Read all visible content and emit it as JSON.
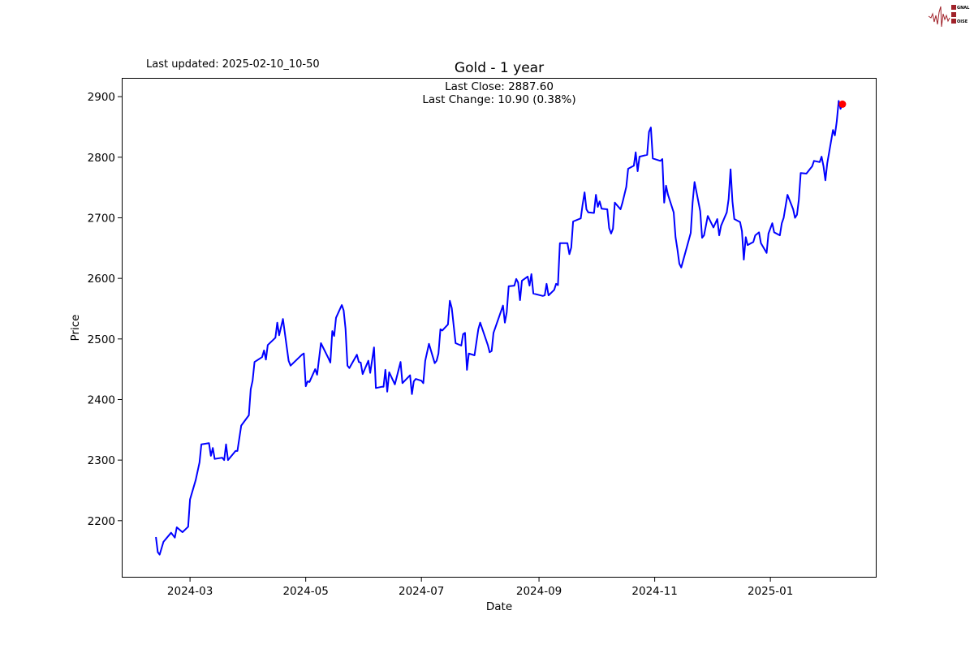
{
  "logo": {
    "text": "SIGNAL 2 NOISE"
  },
  "last_updated": "Last updated: 2025-02-10_10-50",
  "chart_data": {
    "type": "line",
    "title": "Gold - 1 year",
    "xlabel": "Date",
    "ylabel": "Price",
    "annotation": {
      "last_close": "Last Close: 2887.60",
      "last_change": "Last Change: 10.90 (0.38%)"
    },
    "xlim": [
      "2024-01-25",
      "2025-02-26"
    ],
    "ylim": [
      2106,
      2931
    ],
    "x_ticks": [
      "2024-03",
      "2024-05",
      "2024-07",
      "2024-09",
      "2024-11",
      "2025-01"
    ],
    "y_ticks": [
      2200,
      2300,
      2400,
      2500,
      2600,
      2700,
      2800,
      2900
    ],
    "grid": false,
    "line_color": "#0000ff",
    "last_point_color": "#ff0000",
    "series": [
      {
        "points": [
          [
            "2024-02-12",
            2173
          ],
          [
            "2024-02-13",
            2148
          ],
          [
            "2024-02-14",
            2144
          ],
          [
            "2024-02-16",
            2165
          ],
          [
            "2024-02-20",
            2180
          ],
          [
            "2024-02-22",
            2172
          ],
          [
            "2024-02-23",
            2189
          ],
          [
            "2024-02-26",
            2181
          ],
          [
            "2024-02-27",
            2184
          ],
          [
            "2024-02-29",
            2190
          ],
          [
            "2024-03-01",
            2235
          ],
          [
            "2024-03-04",
            2267
          ],
          [
            "2024-03-06",
            2296
          ],
          [
            "2024-03-07",
            2326
          ],
          [
            "2024-03-11",
            2328
          ],
          [
            "2024-03-12",
            2307
          ],
          [
            "2024-03-13",
            2320
          ],
          [
            "2024-03-14",
            2302
          ],
          [
            "2024-03-18",
            2304
          ],
          [
            "2024-03-19",
            2300
          ],
          [
            "2024-03-20",
            2326
          ],
          [
            "2024-03-21",
            2300
          ],
          [
            "2024-03-25",
            2315
          ],
          [
            "2024-03-26",
            2315
          ],
          [
            "2024-03-28",
            2357
          ],
          [
            "2024-04-01",
            2374
          ],
          [
            "2024-04-02",
            2417
          ],
          [
            "2024-04-03",
            2431
          ],
          [
            "2024-04-04",
            2462
          ],
          [
            "2024-04-08",
            2470
          ],
          [
            "2024-04-09",
            2481
          ],
          [
            "2024-04-10",
            2466
          ],
          [
            "2024-04-11",
            2490
          ],
          [
            "2024-04-15",
            2502
          ],
          [
            "2024-04-16",
            2527
          ],
          [
            "2024-04-17",
            2506
          ],
          [
            "2024-04-19",
            2533
          ],
          [
            "2024-04-22",
            2464
          ],
          [
            "2024-04-23",
            2456
          ],
          [
            "2024-04-29",
            2474
          ],
          [
            "2024-04-30",
            2476
          ],
          [
            "2024-05-01",
            2422
          ],
          [
            "2024-05-02",
            2430
          ],
          [
            "2024-05-03",
            2429
          ],
          [
            "2024-05-06",
            2450
          ],
          [
            "2024-05-07",
            2441
          ],
          [
            "2024-05-09",
            2493
          ],
          [
            "2024-05-13",
            2468
          ],
          [
            "2024-05-14",
            2461
          ],
          [
            "2024-05-15",
            2513
          ],
          [
            "2024-05-16",
            2505
          ],
          [
            "2024-05-17",
            2535
          ],
          [
            "2024-05-20",
            2556
          ],
          [
            "2024-05-21",
            2547
          ],
          [
            "2024-05-22",
            2517
          ],
          [
            "2024-05-23",
            2456
          ],
          [
            "2024-05-24",
            2452
          ],
          [
            "2024-05-28",
            2474
          ],
          [
            "2024-05-29",
            2462
          ],
          [
            "2024-05-30",
            2461
          ],
          [
            "2024-05-31",
            2442
          ],
          [
            "2024-06-03",
            2464
          ],
          [
            "2024-06-04",
            2444
          ],
          [
            "2024-06-06",
            2486
          ],
          [
            "2024-06-07",
            2419
          ],
          [
            "2024-06-10",
            2421
          ],
          [
            "2024-06-11",
            2421
          ],
          [
            "2024-06-12",
            2449
          ],
          [
            "2024-06-13",
            2413
          ],
          [
            "2024-06-14",
            2445
          ],
          [
            "2024-06-17",
            2425
          ],
          [
            "2024-06-20",
            2462
          ],
          [
            "2024-06-21",
            2427
          ],
          [
            "2024-06-25",
            2440
          ],
          [
            "2024-06-26",
            2409
          ],
          [
            "2024-06-27",
            2430
          ],
          [
            "2024-06-28",
            2434
          ],
          [
            "2024-07-01",
            2431
          ],
          [
            "2024-07-02",
            2427
          ],
          [
            "2024-07-03",
            2464
          ],
          [
            "2024-07-05",
            2492
          ],
          [
            "2024-07-08",
            2460
          ],
          [
            "2024-07-09",
            2464
          ],
          [
            "2024-07-10",
            2476
          ],
          [
            "2024-07-11",
            2516
          ],
          [
            "2024-07-12",
            2514
          ],
          [
            "2024-07-15",
            2524
          ],
          [
            "2024-07-16",
            2563
          ],
          [
            "2024-07-17",
            2551
          ],
          [
            "2024-07-19",
            2493
          ],
          [
            "2024-07-22",
            2489
          ],
          [
            "2024-07-23",
            2508
          ],
          [
            "2024-07-24",
            2510
          ],
          [
            "2024-07-25",
            2449
          ],
          [
            "2024-07-26",
            2476
          ],
          [
            "2024-07-29",
            2473
          ],
          [
            "2024-07-31",
            2516
          ],
          [
            "2024-08-01",
            2527
          ],
          [
            "2024-08-05",
            2490
          ],
          [
            "2024-08-06",
            2478
          ],
          [
            "2024-08-07",
            2480
          ],
          [
            "2024-08-08",
            2510
          ],
          [
            "2024-08-13",
            2555
          ],
          [
            "2024-08-14",
            2527
          ],
          [
            "2024-08-15",
            2544
          ],
          [
            "2024-08-16",
            2587
          ],
          [
            "2024-08-19",
            2588
          ],
          [
            "2024-08-20",
            2599
          ],
          [
            "2024-08-21",
            2593
          ],
          [
            "2024-08-22",
            2564
          ],
          [
            "2024-08-23",
            2596
          ],
          [
            "2024-08-26",
            2603
          ],
          [
            "2024-08-27",
            2588
          ],
          [
            "2024-08-28",
            2607
          ],
          [
            "2024-08-29",
            2575
          ],
          [
            "2024-09-03",
            2571
          ],
          [
            "2024-09-04",
            2572
          ],
          [
            "2024-09-05",
            2591
          ],
          [
            "2024-09-06",
            2572
          ],
          [
            "2024-09-09",
            2581
          ],
          [
            "2024-09-10",
            2591
          ],
          [
            "2024-09-11",
            2589
          ],
          [
            "2024-09-12",
            2658
          ],
          [
            "2024-09-16",
            2658
          ],
          [
            "2024-09-17",
            2640
          ],
          [
            "2024-09-18",
            2651
          ],
          [
            "2024-09-19",
            2694
          ],
          [
            "2024-09-23",
            2699
          ],
          [
            "2024-09-24",
            2722
          ],
          [
            "2024-09-25",
            2742
          ],
          [
            "2024-09-26",
            2714
          ],
          [
            "2024-09-27",
            2709
          ],
          [
            "2024-09-30",
            2708
          ],
          [
            "2024-10-01",
            2738
          ],
          [
            "2024-10-02",
            2718
          ],
          [
            "2024-10-03",
            2727
          ],
          [
            "2024-10-04",
            2715
          ],
          [
            "2024-10-07",
            2714
          ],
          [
            "2024-10-08",
            2683
          ],
          [
            "2024-10-09",
            2674
          ],
          [
            "2024-10-10",
            2682
          ],
          [
            "2024-10-11",
            2725
          ],
          [
            "2024-10-14",
            2714
          ],
          [
            "2024-10-15",
            2725
          ],
          [
            "2024-10-17",
            2751
          ],
          [
            "2024-10-18",
            2781
          ],
          [
            "2024-10-21",
            2786
          ],
          [
            "2024-10-22",
            2808
          ],
          [
            "2024-10-23",
            2777
          ],
          [
            "2024-10-24",
            2801
          ],
          [
            "2024-10-28",
            2804
          ],
          [
            "2024-10-29",
            2842
          ],
          [
            "2024-10-30",
            2849
          ],
          [
            "2024-10-31",
            2798
          ],
          [
            "2024-11-04",
            2794
          ],
          [
            "2024-11-05",
            2797
          ],
          [
            "2024-11-06",
            2725
          ],
          [
            "2024-11-07",
            2753
          ],
          [
            "2024-11-08",
            2738
          ],
          [
            "2024-11-11",
            2709
          ],
          [
            "2024-11-12",
            2668
          ],
          [
            "2024-11-13",
            2648
          ],
          [
            "2024-11-14",
            2624
          ],
          [
            "2024-11-15",
            2618
          ],
          [
            "2024-11-18",
            2652
          ],
          [
            "2024-11-20",
            2675
          ],
          [
            "2024-11-21",
            2725
          ],
          [
            "2024-11-22",
            2759
          ],
          [
            "2024-11-25",
            2711
          ],
          [
            "2024-11-26",
            2667
          ],
          [
            "2024-11-27",
            2671
          ],
          [
            "2024-11-28",
            2687
          ],
          [
            "2024-11-29",
            2703
          ],
          [
            "2024-12-02",
            2684
          ],
          [
            "2024-12-04",
            2698
          ],
          [
            "2024-12-05",
            2671
          ],
          [
            "2024-12-06",
            2687
          ],
          [
            "2024-12-09",
            2709
          ],
          [
            "2024-12-10",
            2731
          ],
          [
            "2024-12-11",
            2780
          ],
          [
            "2024-12-12",
            2727
          ],
          [
            "2024-12-13",
            2698
          ],
          [
            "2024-12-16",
            2693
          ],
          [
            "2024-12-17",
            2678
          ],
          [
            "2024-12-18",
            2631
          ],
          [
            "2024-12-19",
            2668
          ],
          [
            "2024-12-20",
            2655
          ],
          [
            "2024-12-23",
            2660
          ],
          [
            "2024-12-24",
            2671
          ],
          [
            "2024-12-26",
            2676
          ],
          [
            "2024-12-27",
            2658
          ],
          [
            "2024-12-30",
            2642
          ],
          [
            "2024-12-31",
            2674
          ],
          [
            "2025-01-02",
            2691
          ],
          [
            "2025-01-03",
            2676
          ],
          [
            "2025-01-06",
            2671
          ],
          [
            "2025-01-07",
            2691
          ],
          [
            "2025-01-08",
            2700
          ],
          [
            "2025-01-10",
            2738
          ],
          [
            "2025-01-13",
            2714
          ],
          [
            "2025-01-14",
            2700
          ],
          [
            "2025-01-15",
            2705
          ],
          [
            "2025-01-16",
            2730
          ],
          [
            "2025-01-17",
            2774
          ],
          [
            "2025-01-20",
            2773
          ],
          [
            "2025-01-22",
            2781
          ],
          [
            "2025-01-23",
            2785
          ],
          [
            "2025-01-24",
            2794
          ],
          [
            "2025-01-27",
            2792
          ],
          [
            "2025-01-28",
            2801
          ],
          [
            "2025-01-29",
            2785
          ],
          [
            "2025-01-30",
            2762
          ],
          [
            "2025-01-31",
            2790
          ],
          [
            "2025-02-03",
            2845
          ],
          [
            "2025-02-04",
            2836
          ],
          [
            "2025-02-05",
            2859
          ],
          [
            "2025-02-06",
            2893
          ],
          [
            "2025-02-07",
            2880
          ],
          [
            "2025-02-08",
            2887.6
          ]
        ]
      }
    ]
  }
}
